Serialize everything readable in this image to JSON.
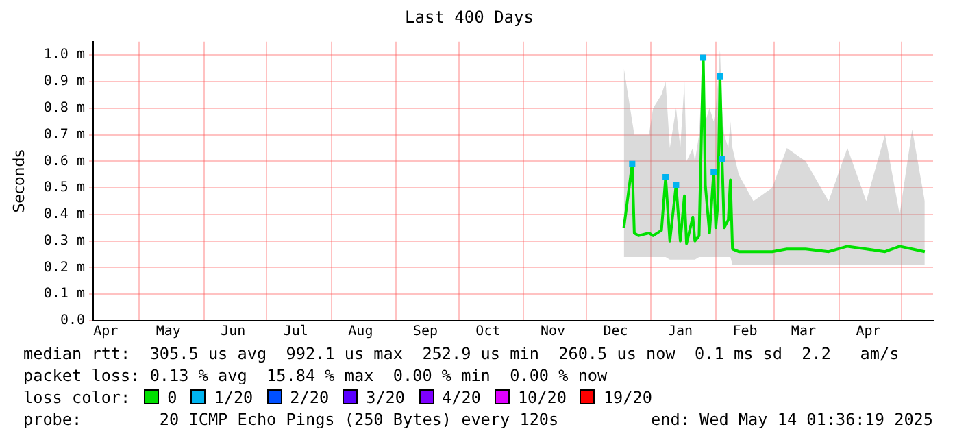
{
  "chart_data": {
    "type": "line",
    "title": "Last 400 Days",
    "ylabel": "Seconds",
    "legend_title": "loss color:",
    "legend": "bottom",
    "grid": true,
    "xlim": [
      "2024-04-09",
      "2025-05-16"
    ],
    "xticks": [
      {
        "value": "2024-04-15",
        "label": "Apr"
      },
      {
        "value": "2024-05-01",
        "label": null
      },
      {
        "value": "2024-05-15",
        "label": "May"
      },
      {
        "value": "2024-06-01",
        "label": null
      },
      {
        "value": "2024-06-15",
        "label": "Jun"
      },
      {
        "value": "2024-07-01",
        "label": null
      },
      {
        "value": "2024-07-15",
        "label": "Jul"
      },
      {
        "value": "2024-08-01",
        "label": null
      },
      {
        "value": "2024-08-15",
        "label": "Aug"
      },
      {
        "value": "2024-09-01",
        "label": null
      },
      {
        "value": "2024-09-15",
        "label": "Sep"
      },
      {
        "value": "2024-10-01",
        "label": null
      },
      {
        "value": "2024-10-15",
        "label": "Oct"
      },
      {
        "value": "2024-11-01",
        "label": null
      },
      {
        "value": "2024-11-15",
        "label": "Nov"
      },
      {
        "value": "2024-12-01",
        "label": null
      },
      {
        "value": "2024-12-15",
        "label": "Dec"
      },
      {
        "value": "2025-01-01",
        "label": null
      },
      {
        "value": "2025-01-15",
        "label": "Jan"
      },
      {
        "value": "2025-02-01",
        "label": null
      },
      {
        "value": "2025-02-15",
        "label": "Feb"
      },
      {
        "value": "2025-03-01",
        "label": null
      },
      {
        "value": "2025-03-15",
        "label": "Mar"
      },
      {
        "value": "2025-04-01",
        "label": null
      },
      {
        "value": "2025-04-15",
        "label": "Apr"
      },
      {
        "value": "2025-05-01",
        "label": null
      }
    ],
    "ylim": [
      0,
      1.05
    ],
    "yticks": [
      {
        "value": 0,
        "label": "0.0"
      },
      {
        "value": 0.1,
        "label": "0.1 m"
      },
      {
        "value": 0.2,
        "label": "0.2 m"
      },
      {
        "value": 0.3,
        "label": "0.3 m"
      },
      {
        "value": 0.4,
        "label": "0.4 m"
      },
      {
        "value": 0.5,
        "label": "0.5 m"
      },
      {
        "value": 0.6,
        "label": "0.6 m"
      },
      {
        "value": 0.7,
        "label": "0.7 m"
      },
      {
        "value": 0.8,
        "label": "0.8 m"
      },
      {
        "value": 0.9,
        "label": "0.9 m"
      },
      {
        "value": 1.0,
        "label": "1.0 m"
      }
    ],
    "series": [
      {
        "name": "0",
        "color": "#00e000",
        "x": [
          "2024-12-19",
          "2024-12-23",
          "2024-12-24",
          "2024-12-26",
          "2024-12-31",
          "2025-01-02",
          "2025-01-06",
          "2025-01-08",
          "2025-01-10",
          "2025-01-11",
          "2025-01-13",
          "2025-01-15",
          "2025-01-17",
          "2025-01-18",
          "2025-01-21",
          "2025-01-22",
          "2025-01-24",
          "2025-01-26",
          "2025-01-27",
          "2025-01-29",
          "2025-01-31",
          "2025-02-01",
          "2025-02-02",
          "2025-02-03",
          "2025-02-04",
          "2025-02-05",
          "2025-02-07",
          "2025-02-08",
          "2025-02-09",
          "2025-02-12",
          "2025-02-19",
          "2025-02-28",
          "2025-03-07",
          "2025-03-16",
          "2025-03-27",
          "2025-04-05",
          "2025-04-14",
          "2025-04-23",
          "2025-04-30",
          "2025-05-06",
          "2025-05-12"
        ],
        "values": [
          0.35,
          0.59,
          0.33,
          0.32,
          0.33,
          0.32,
          0.34,
          0.54,
          0.3,
          0.37,
          0.51,
          0.3,
          0.47,
          0.29,
          0.39,
          0.3,
          0.32,
          0.99,
          0.51,
          0.33,
          0.56,
          0.35,
          0.44,
          0.92,
          0.61,
          0.35,
          0.38,
          0.53,
          0.27,
          0.26,
          0.26,
          0.26,
          0.27,
          0.27,
          0.26,
          0.28,
          0.27,
          0.26,
          0.28,
          0.27,
          0.26
        ],
        "lower": [
          0.24,
          0.24,
          0.24,
          0.24,
          0.24,
          0.24,
          0.24,
          0.24,
          0.23,
          0.23,
          0.23,
          0.23,
          0.23,
          0.23,
          0.23,
          0.23,
          0.24,
          0.24,
          0.24,
          0.24,
          0.24,
          0.24,
          0.24,
          0.24,
          0.24,
          0.24,
          0.24,
          0.24,
          0.21,
          0.21,
          0.21,
          0.21,
          0.21,
          0.21,
          0.21,
          0.21,
          0.21,
          0.21,
          0.21,
          0.21,
          0.21
        ],
        "upper": [
          0.95,
          0.75,
          0.7,
          0.7,
          0.7,
          0.8,
          0.85,
          0.9,
          0.65,
          0.7,
          0.8,
          0.65,
          0.9,
          0.6,
          0.65,
          0.6,
          0.7,
          1.0,
          0.75,
          0.8,
          0.75,
          0.8,
          0.9,
          1.02,
          0.8,
          0.7,
          0.65,
          0.75,
          0.65,
          0.55,
          0.45,
          0.5,
          0.65,
          0.6,
          0.45,
          0.65,
          0.45,
          0.7,
          0.4,
          0.72,
          0.45
        ]
      },
      {
        "name": "1/20",
        "type": "scatter",
        "marker": "square",
        "color": "#00b4f0",
        "x": [
          "2024-12-23",
          "2025-01-08",
          "2025-01-13",
          "2025-01-26",
          "2025-01-31",
          "2025-02-03",
          "2025-02-04"
        ],
        "values": [
          0.59,
          0.54,
          0.51,
          0.99,
          0.56,
          0.92,
          0.61
        ]
      },
      {
        "name": "2/20",
        "type": "scatter",
        "marker": "square",
        "color": "#0050ff"
      },
      {
        "name": "3/20",
        "type": "scatter",
        "marker": "square",
        "color": "#5a00ff"
      },
      {
        "name": "4/20",
        "type": "scatter",
        "marker": "square",
        "color": "#7e00ff"
      },
      {
        "name": "10/20",
        "type": "scatter",
        "marker": "square",
        "color": "#dd00ff"
      },
      {
        "name": "19/20",
        "type": "scatter",
        "marker": "square",
        "color": "#ff0000"
      }
    ],
    "annotations": [
      "median rtt:  305.5 us avg  992.1 us max  252.9 us min  260.5 us now  0.1 ms sd  2.2   am/s",
      "packet loss: 0.13 % avg  15.84 % max  0.00 % min  0.00 % now",
      "probe:        20 ICMP Echo Pings (250 Bytes) every 120s",
      "end: Wed May 14 01:36:19 2025"
    ]
  }
}
